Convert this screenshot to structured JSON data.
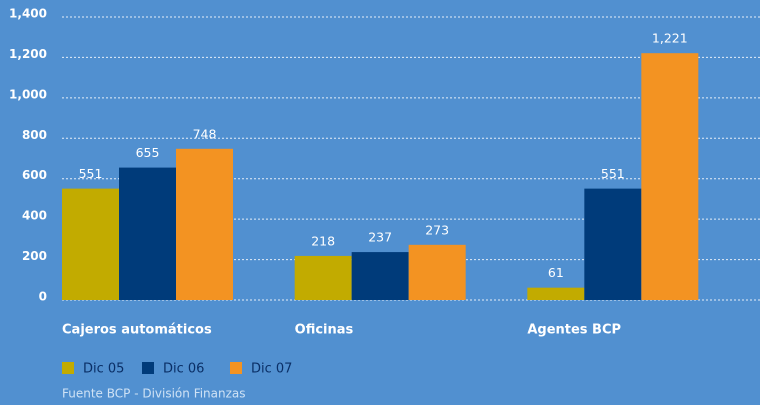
{
  "chart_data": {
    "type": "bar",
    "categories": [
      "Cajeros automáticos",
      "Oficinas",
      "Agentes BCP"
    ],
    "series": [
      {
        "name": "Dic 05",
        "color": "#c2ab00",
        "values": [
          551,
          218,
          61
        ]
      },
      {
        "name": "Dic 06",
        "color": "#003b7a",
        "values": [
          655,
          237,
          551
        ]
      },
      {
        "name": "Dic 07",
        "color": "#f39322",
        "values": [
          748,
          273,
          1221
        ],
        "value_labels": [
          "748",
          "273",
          "1,221"
        ]
      }
    ],
    "ylim": [
      0,
      1400
    ],
    "yticks": [
      0,
      200,
      400,
      600,
      800,
      {
        "value": 1000,
        "label": "1,000"
      },
      {
        "value": 1200,
        "label": "1,200"
      },
      {
        "value": 1400,
        "label": "1,400"
      }
    ],
    "grid": true,
    "legend": "bottom-left",
    "source": "Fuente BCP - División Finanzas"
  }
}
